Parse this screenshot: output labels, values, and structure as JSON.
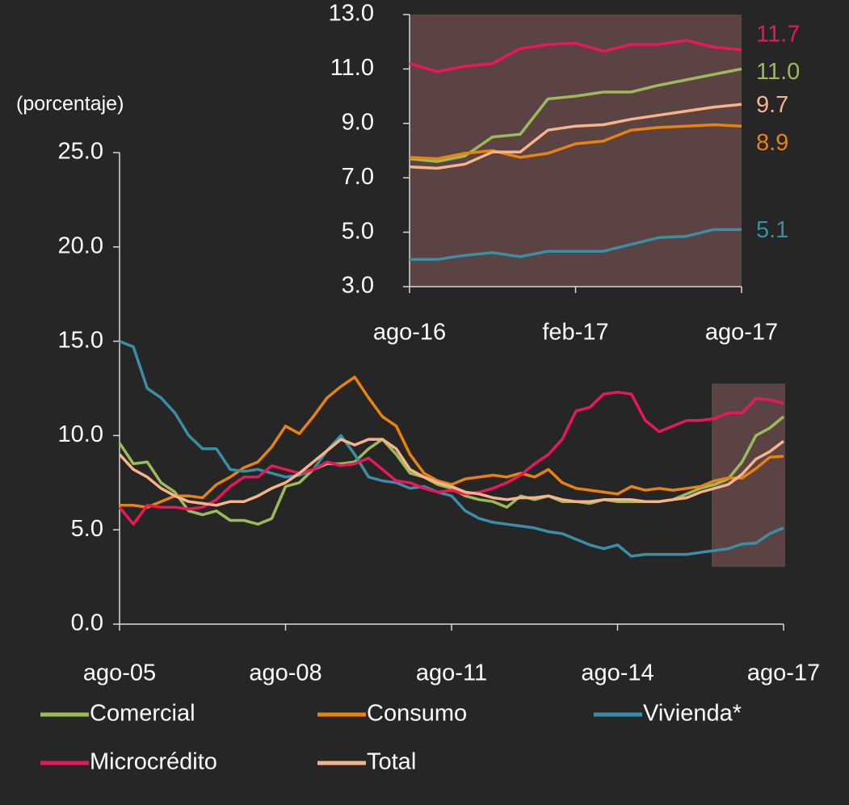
{
  "chart_data": [
    {
      "type": "line",
      "y_label": "(porcentaje)",
      "categories": [
        "ago-05",
        null,
        null,
        null,
        null,
        null,
        null,
        null,
        null,
        null,
        null,
        null,
        "ago-08",
        null,
        null,
        null,
        null,
        null,
        null,
        null,
        null,
        null,
        null,
        null,
        "ago-11",
        null,
        null,
        null,
        null,
        null,
        null,
        null,
        null,
        null,
        null,
        null,
        "ago-14",
        null,
        null,
        null,
        null,
        null,
        null,
        null,
        null,
        null,
        null,
        null,
        "ago-17"
      ],
      "ylim": [
        0,
        25
      ],
      "yticks": [
        {
          "value": 0,
          "label": "0.0"
        },
        {
          "value": 5,
          "label": "5.0"
        },
        {
          "value": 10,
          "label": "10.0"
        },
        {
          "value": 15,
          "label": "15.0"
        },
        {
          "value": 20,
          "label": "20.0"
        },
        {
          "value": 25,
          "label": "25.0"
        }
      ],
      "legend": "bottom",
      "series": [
        {
          "name": "Comercial",
          "color": "#9bbb59",
          "values": [
            9.6,
            8.5,
            8.6,
            7.5,
            7.0,
            6.0,
            5.8,
            6.0,
            5.5,
            5.5,
            5.3,
            5.6,
            7.3,
            7.5,
            8.2,
            8.5,
            8.5,
            8.6,
            9.3,
            9.8,
            9.0,
            8.0,
            7.8,
            7.4,
            7.2,
            6.8,
            6.6,
            6.5,
            6.2,
            6.8,
            6.6,
            6.8,
            6.5,
            6.5,
            6.4,
            6.6,
            6.5,
            6.5,
            6.5,
            6.5,
            6.6,
            6.9,
            7.2,
            7.4,
            7.7,
            8.6,
            10.0,
            10.4,
            11.0
          ]
        },
        {
          "name": "Consumo",
          "color": "#e8830f",
          "values": [
            6.3,
            6.3,
            6.2,
            6.5,
            6.8,
            6.8,
            6.7,
            7.4,
            7.8,
            8.3,
            8.6,
            9.4,
            10.5,
            10.1,
            11.0,
            12.0,
            12.6,
            13.1,
            12.0,
            11.0,
            10.5,
            9.0,
            8.0,
            7.6,
            7.4,
            7.7,
            7.8,
            7.9,
            7.8,
            8.0,
            7.8,
            8.2,
            7.5,
            7.2,
            7.1,
            7.0,
            6.9,
            7.3,
            7.1,
            7.2,
            7.1,
            7.2,
            7.3,
            7.6,
            7.75,
            7.75,
            8.25,
            8.85,
            8.9
          ]
        },
        {
          "name": "Vivienda*",
          "color": "#3a8ea5",
          "values": [
            15.0,
            14.7,
            12.5,
            12.0,
            11.2,
            10.0,
            9.3,
            9.3,
            8.2,
            8.1,
            8.2,
            8.0,
            7.8,
            7.9,
            8.2,
            9.2,
            10.0,
            9.0,
            7.8,
            7.6,
            7.5,
            7.2,
            7.3,
            7.0,
            6.8,
            6.0,
            5.6,
            5.4,
            5.3,
            5.2,
            5.1,
            4.9,
            4.8,
            4.5,
            4.2,
            4.0,
            4.2,
            3.6,
            3.7,
            3.7,
            3.7,
            3.7,
            3.8,
            3.9,
            4.0,
            4.25,
            4.3,
            4.8,
            5.1
          ]
        },
        {
          "name": "Microcrédito",
          "color": "#e8185a",
          "values": [
            6.2,
            5.3,
            6.3,
            6.2,
            6.2,
            6.1,
            6.2,
            6.6,
            7.3,
            7.8,
            7.8,
            8.4,
            8.2,
            8.0,
            8.2,
            8.6,
            8.4,
            8.5,
            8.8,
            8.2,
            7.6,
            7.5,
            7.2,
            7.0,
            7.1,
            6.9,
            7.0,
            7.2,
            7.5,
            7.9,
            8.5,
            9.0,
            9.8,
            11.3,
            11.5,
            12.2,
            12.3,
            12.2,
            10.8,
            10.2,
            10.5,
            10.8,
            10.8,
            10.9,
            11.2,
            11.2,
            11.95,
            11.9,
            11.7
          ]
        },
        {
          "name": "Total",
          "color": "#f9b38a",
          "values": [
            9.0,
            8.2,
            7.8,
            7.2,
            6.8,
            6.5,
            6.4,
            6.3,
            6.5,
            6.5,
            6.8,
            7.2,
            7.5,
            8.0,
            8.6,
            9.2,
            9.8,
            9.5,
            9.8,
            9.8,
            9.3,
            8.2,
            7.8,
            7.5,
            7.3,
            7.0,
            6.9,
            6.7,
            6.6,
            6.7,
            6.7,
            6.8,
            6.6,
            6.5,
            6.5,
            6.6,
            6.6,
            6.6,
            6.5,
            6.5,
            6.6,
            6.7,
            7.0,
            7.2,
            7.4,
            7.95,
            8.75,
            9.15,
            9.7
          ]
        }
      ]
    },
    {
      "type": "line",
      "categories": [
        "ago-16",
        null,
        null,
        null,
        null,
        null,
        "feb-17",
        null,
        null,
        null,
        null,
        null,
        "ago-17"
      ],
      "ylim": [
        3,
        13
      ],
      "yticks": [
        {
          "value": 3,
          "label": "3.0"
        },
        {
          "value": 5,
          "label": "5.0"
        },
        {
          "value": 7,
          "label": "7.0"
        },
        {
          "value": 9,
          "label": "9.0"
        },
        {
          "value": 11,
          "label": "11.0"
        },
        {
          "value": 13,
          "label": "13.0"
        }
      ],
      "series": [
        {
          "color": "#9bbb59",
          "end_label": "11.0",
          "values": [
            7.7,
            7.6,
            7.8,
            8.5,
            8.6,
            9.9,
            10.0,
            10.15,
            10.15,
            10.4,
            10.6,
            10.8,
            11.0
          ]
        },
        {
          "color": "#e8830f",
          "end_label": "8.9",
          "values": [
            7.75,
            7.7,
            7.9,
            8.0,
            7.75,
            7.9,
            8.25,
            8.35,
            8.75,
            8.85,
            8.9,
            8.95,
            8.9
          ]
        },
        {
          "color": "#3a8ea5",
          "end_label": "5.1",
          "values": [
            4.0,
            4.0,
            4.15,
            4.25,
            4.1,
            4.3,
            4.3,
            4.3,
            4.55,
            4.8,
            4.85,
            5.1,
            5.1
          ]
        },
        {
          "color": "#e8185a",
          "end_label": "11.7",
          "values": [
            11.2,
            10.9,
            11.1,
            11.2,
            11.75,
            11.9,
            11.95,
            11.65,
            11.9,
            11.9,
            12.05,
            11.8,
            11.7
          ]
        },
        {
          "color": "#f9b38a",
          "end_label": "9.7",
          "values": [
            7.4,
            7.35,
            7.5,
            7.95,
            7.95,
            8.75,
            8.9,
            8.95,
            9.15,
            9.3,
            9.45,
            9.6,
            9.7
          ]
        }
      ]
    }
  ]
}
